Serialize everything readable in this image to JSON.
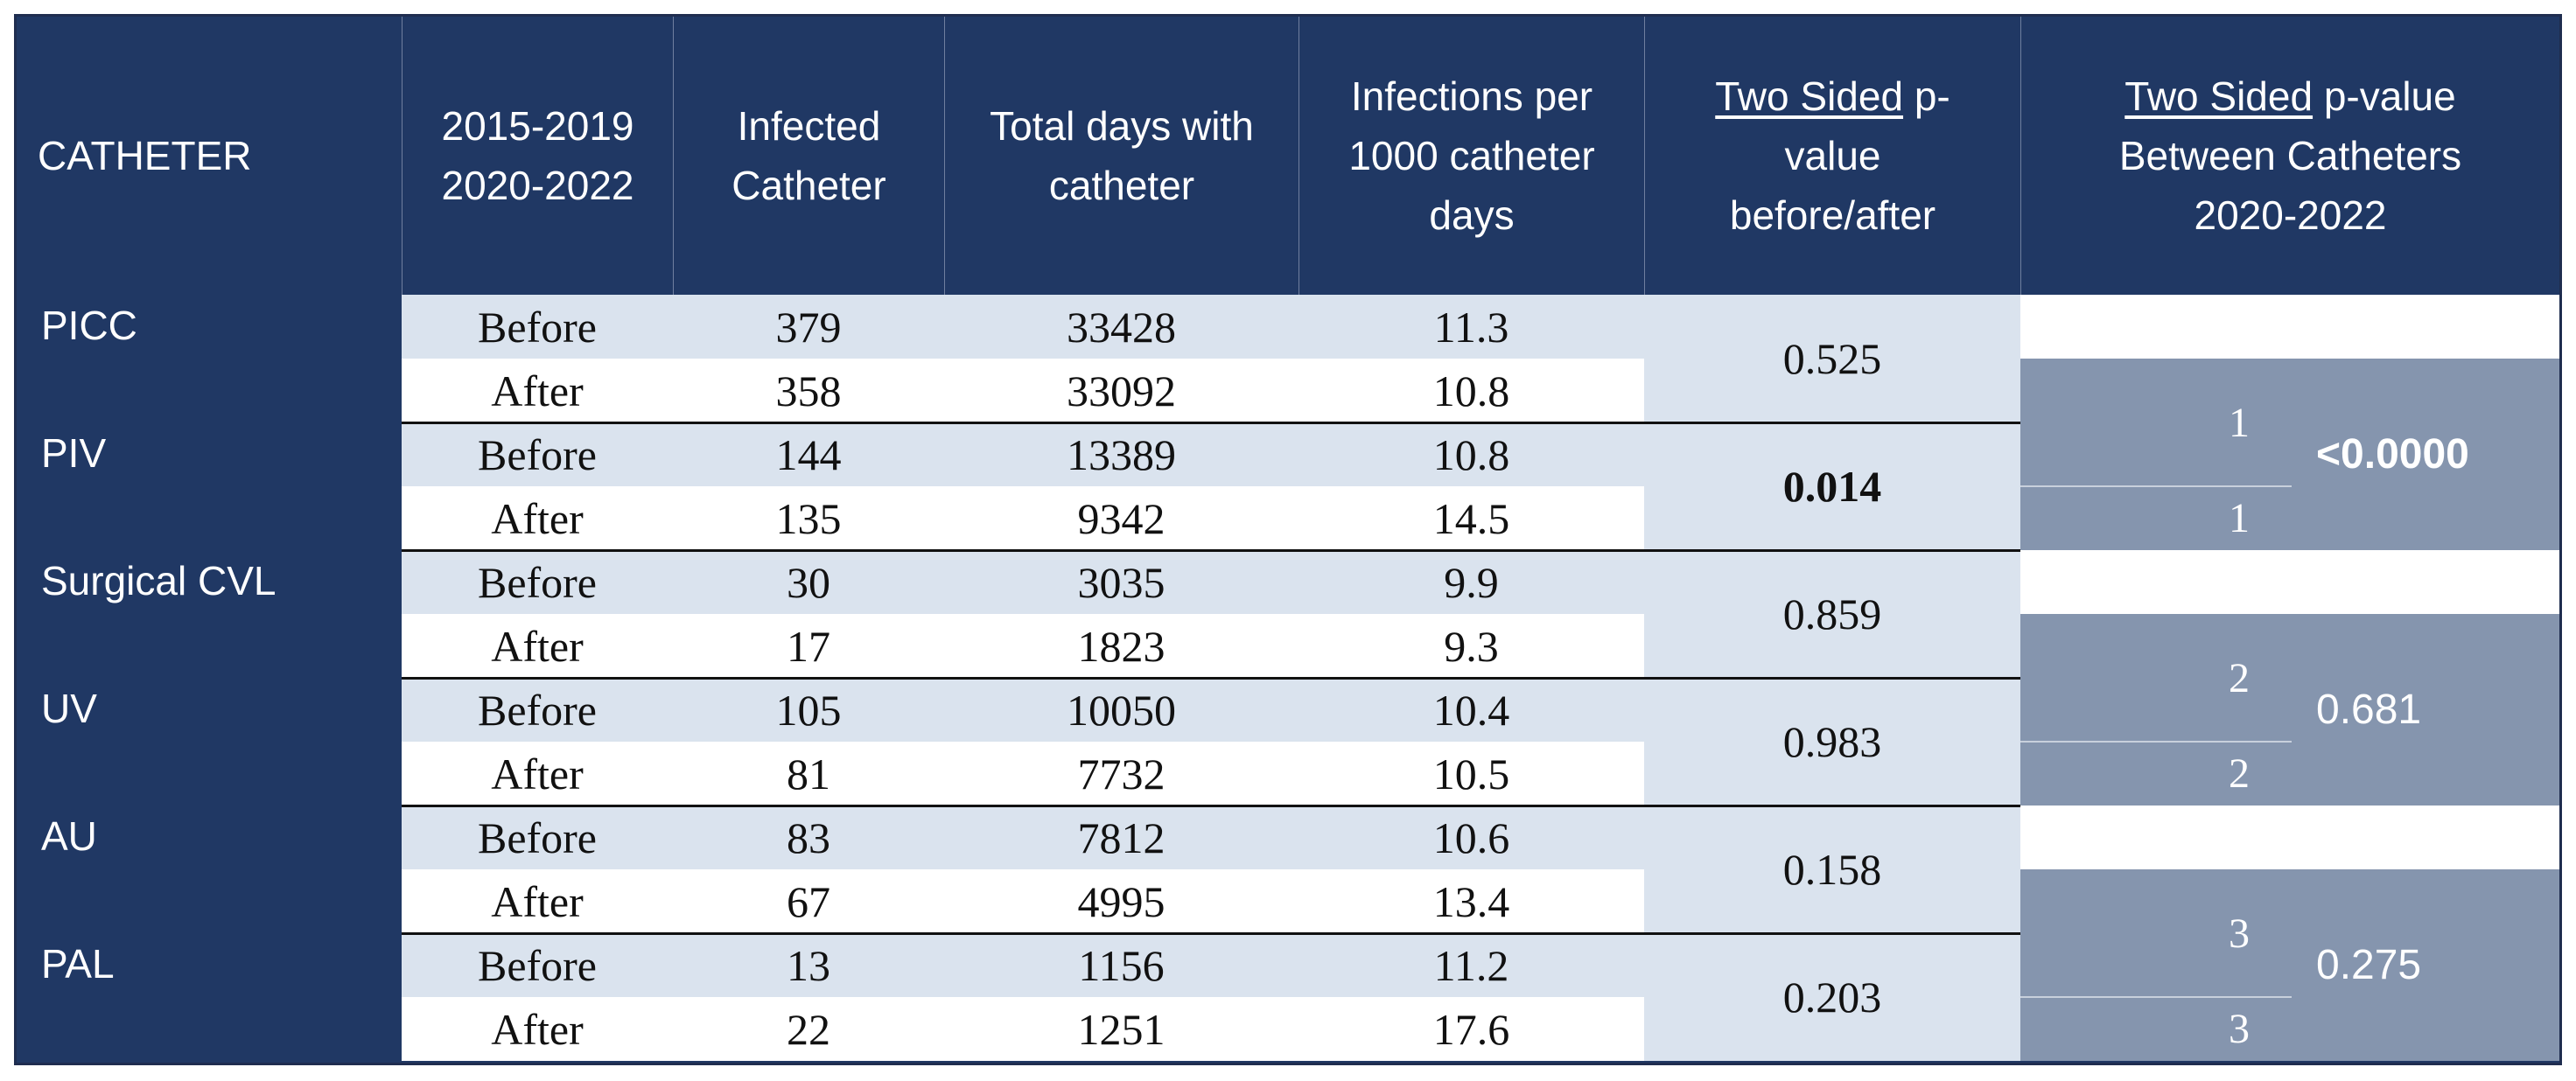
{
  "headers": {
    "catheter": "CATHETER",
    "period": [
      "2015-2019",
      "2020-2022"
    ],
    "infected": [
      "Infected",
      "Catheter"
    ],
    "total_days": [
      "Total days with",
      "catheter"
    ],
    "rate": [
      "Infections per",
      "1000 catheter",
      "days"
    ],
    "p_before_after_u": "Two Sided",
    "p_before_after_rest": [
      " p-",
      "value",
      "before/after"
    ],
    "p_between_u": "Two Sided",
    "p_between_rest": [
      " p-value",
      "Between Catheters",
      "2020-2022"
    ]
  },
  "rows": [
    {
      "catheter": "PICC",
      "before": {
        "label": "Before",
        "infected": "379",
        "days": "33428",
        "rate": "11.3"
      },
      "after": {
        "label": "After",
        "infected": "358",
        "days": "33092",
        "rate": "10.8"
      },
      "p": "0.525",
      "p_bold": false
    },
    {
      "catheter": "PIV",
      "before": {
        "label": "Before",
        "infected": "144",
        "days": "13389",
        "rate": "10.8"
      },
      "after": {
        "label": "After",
        "infected": "135",
        "days": "9342",
        "rate": "14.5"
      },
      "p": "0.014",
      "p_bold": true
    },
    {
      "catheter": "Surgical CVL",
      "before": {
        "label": "Before",
        "infected": "30",
        "days": "3035",
        "rate": "9.9"
      },
      "after": {
        "label": "After",
        "infected": "17",
        "days": "1823",
        "rate": "9.3"
      },
      "p": "0.859",
      "p_bold": false
    },
    {
      "catheter": "UV",
      "before": {
        "label": "Before",
        "infected": "105",
        "days": "10050",
        "rate": "10.4"
      },
      "after": {
        "label": "After",
        "infected": "81",
        "days": "7732",
        "rate": "10.5"
      },
      "p": "0.983",
      "p_bold": false
    },
    {
      "catheter": "AU",
      "before": {
        "label": "Before",
        "infected": "83",
        "days": "7812",
        "rate": "10.6"
      },
      "after": {
        "label": "After",
        "infected": "67",
        "days": "4995",
        "rate": "13.4"
      },
      "p": "0.158",
      "p_bold": false
    },
    {
      "catheter": "PAL",
      "before": {
        "label": "Before",
        "infected": "13",
        "days": "1156",
        "rate": "11.2"
      },
      "after": {
        "label": "After",
        "infected": "22",
        "days": "1251",
        "rate": "17.6"
      },
      "p": "0.203",
      "p_bold": false
    }
  ],
  "comparisons": [
    {
      "group_a": "1",
      "group_b": "1",
      "p": "<0.0000",
      "p_bold": true
    },
    {
      "group_a": "2",
      "group_b": "2",
      "p": "0.681",
      "p_bold": false
    },
    {
      "group_a": "3",
      "group_b": "3",
      "p": "0.275",
      "p_bold": false
    }
  ],
  "colors": {
    "header_bg": "#203864",
    "row_light": "#dae3ee",
    "group_bg": "#8595ae"
  }
}
